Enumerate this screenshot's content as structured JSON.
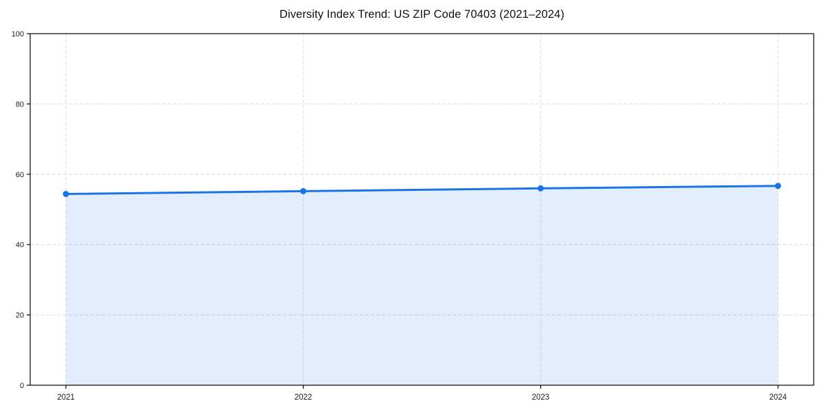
{
  "figure": {
    "background": "#ffffff"
  },
  "chart_data": {
    "type": "area",
    "title": "Diversity Index Trend: US ZIP Code 70403 (2021–2024)",
    "categories": [
      "2021",
      "2022",
      "2023",
      "2024"
    ],
    "series": [
      {
        "name": "Diversity Index",
        "values": [
          54.4,
          55.2,
          56.0,
          56.7
        ]
      }
    ],
    "xlabel": "",
    "ylabel": "",
    "ylim": [
      0,
      100
    ],
    "yticks": [
      0,
      20,
      40,
      60,
      80,
      100
    ],
    "grid": true,
    "grid_style": "dashed",
    "legend_position": "none",
    "marker": "circle",
    "colors": {
      "line": "#1a73e8",
      "fill": "rgba(26,115,232,0.12)",
      "grid": "#dcdcdc",
      "spine": "#000000",
      "text": "#1a1a1a"
    }
  }
}
